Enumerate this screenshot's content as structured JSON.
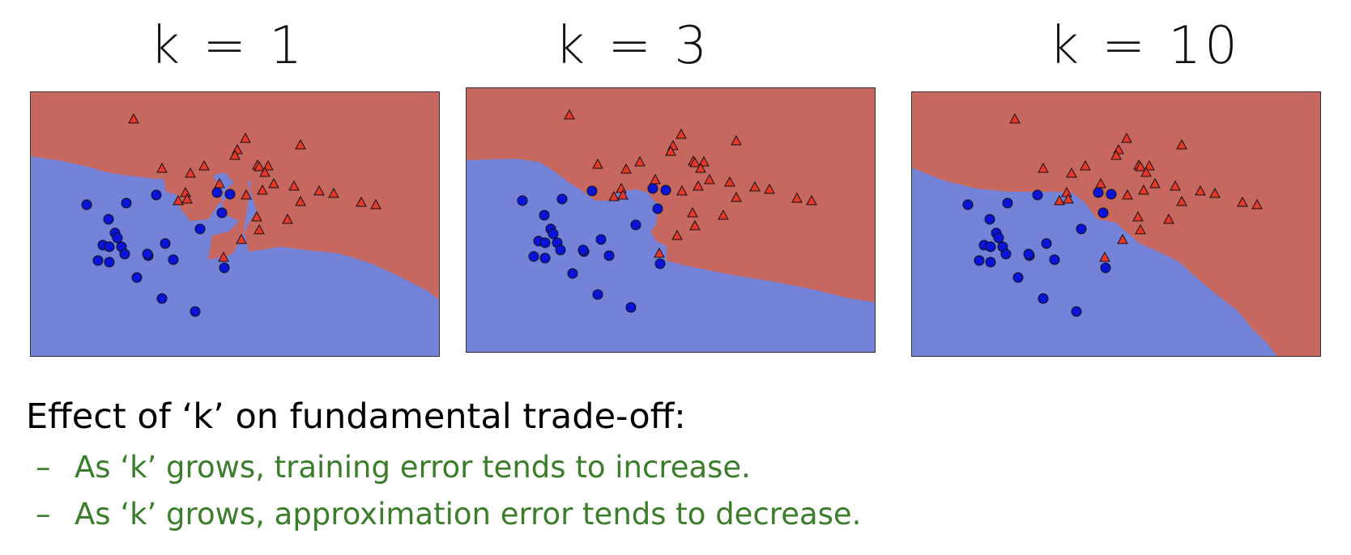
{
  "colors": {
    "red_region": "#c66860",
    "blue_region": "#7483d8",
    "point_red": "#e8382a",
    "point_blue": "#0a14d8",
    "bullet_green": "#3a7d2a"
  },
  "panels": [
    {
      "title": "k = 1"
    },
    {
      "title": "k = 3"
    },
    {
      "title": "k = 10"
    }
  ],
  "heading": "Effect of ‘k’ on fundamental trade-off:",
  "bullets": [
    {
      "dash": "–",
      "text": "As ‘k’ grows, training error tends to increase."
    },
    {
      "dash": "–",
      "text": "As ‘k’ grows, approximation error tends to decrease."
    }
  ]
}
